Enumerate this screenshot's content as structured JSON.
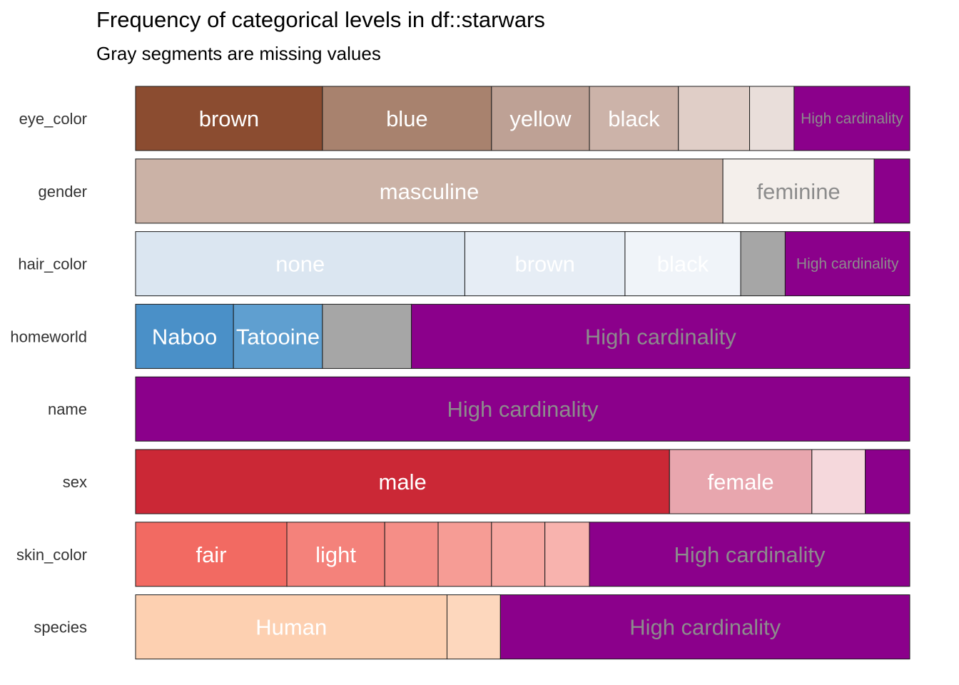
{
  "chart_data": {
    "type": "bar",
    "orientation": "horizontal-stacked-proportion",
    "title": "Frequency of categorical levels in df::starwars",
    "subtitle": "Gray segments are missing values",
    "xlabel": "",
    "ylabel": "",
    "total": 87,
    "colors": {
      "missing": "#A6A6A6",
      "high_cardinality": "#8B008B",
      "label_light": "#FFFFFF",
      "label_gray": "#8C8C8C"
    },
    "variables": [
      {
        "name": "eye_color",
        "segments": [
          {
            "label": "brown",
            "count": 21,
            "color": "#8B4C30",
            "text_color": "#FFFFFF"
          },
          {
            "label": "blue",
            "count": 19,
            "color": "#A8826E",
            "text_color": "#FFFFFF"
          },
          {
            "label": "yellow",
            "count": 11,
            "color": "#BEA195",
            "text_color": "#FFFFFF"
          },
          {
            "label": "black",
            "count": 10,
            "color": "#CCB3A9",
            "text_color": "#FFFFFF"
          },
          {
            "label": "",
            "count": 8,
            "color": "#E0CEC7",
            "text_color": "#FFFFFF"
          },
          {
            "label": "",
            "count": 5,
            "color": "#E9DEDA",
            "text_color": "#FFFFFF"
          },
          {
            "label": "High cardinality",
            "count": 13,
            "color": "#8B008B",
            "text_color": "#8C8C8C",
            "small": true
          }
        ]
      },
      {
        "name": "gender",
        "segments": [
          {
            "label": "masculine",
            "count": 66,
            "color": "#CBB2A6",
            "text_color": "#FFFFFF"
          },
          {
            "label": "feminine",
            "count": 17,
            "color": "#F4EFEB",
            "text_color": "#8C8C8C"
          },
          {
            "label": "",
            "count": 4,
            "color": "#8B008B",
            "text_color": "#8C8C8C"
          }
        ]
      },
      {
        "name": "hair_color",
        "segments": [
          {
            "label": "none",
            "count": 37,
            "color": "#DBE6F1",
            "text_color": "#FFFFFF"
          },
          {
            "label": "brown",
            "count": 18,
            "color": "#E6EDF5",
            "text_color": "#FFFFFF"
          },
          {
            "label": "black",
            "count": 13,
            "color": "#F0F4F9",
            "text_color": "#FFFFFF"
          },
          {
            "label": "",
            "count": 5,
            "color": "#A6A6A6",
            "text_color": "#FFFFFF"
          },
          {
            "label": "High cardinality",
            "count": 14,
            "color": "#8B008B",
            "text_color": "#8C8C8C",
            "small": true
          }
        ]
      },
      {
        "name": "homeworld",
        "segments": [
          {
            "label": "Naboo",
            "count": 11,
            "color": "#4A90C8",
            "text_color": "#FFFFFF"
          },
          {
            "label": "Tatooine",
            "count": 10,
            "color": "#5F9FD0",
            "text_color": "#FFFFFF"
          },
          {
            "label": "",
            "count": 10,
            "color": "#A6A6A6",
            "text_color": "#FFFFFF"
          },
          {
            "label": "High cardinality",
            "count": 56,
            "color": "#8B008B",
            "text_color": "#8C8C8C"
          }
        ]
      },
      {
        "name": "name",
        "segments": [
          {
            "label": "High cardinality",
            "count": 87,
            "color": "#8B008B",
            "text_color": "#8C8C8C"
          }
        ]
      },
      {
        "name": "sex",
        "segments": [
          {
            "label": "male",
            "count": 60,
            "color": "#CB2836",
            "text_color": "#FFFFFF"
          },
          {
            "label": "female",
            "count": 16,
            "color": "#E8A6AE",
            "text_color": "#FFFFFF"
          },
          {
            "label": "",
            "count": 6,
            "color": "#F5D8DC",
            "text_color": "#FFFFFF"
          },
          {
            "label": "",
            "count": 5,
            "color": "#8B008B",
            "text_color": "#8C8C8C"
          }
        ]
      },
      {
        "name": "skin_color",
        "segments": [
          {
            "label": "fair",
            "count": 17,
            "color": "#F26A62",
            "text_color": "#FFFFFF"
          },
          {
            "label": "light",
            "count": 11,
            "color": "#F4827B",
            "text_color": "#FFFFFF"
          },
          {
            "label": "",
            "count": 6,
            "color": "#F58E87",
            "text_color": "#FFFFFF"
          },
          {
            "label": "",
            "count": 6,
            "color": "#F69C95",
            "text_color": "#FFFFFF"
          },
          {
            "label": "",
            "count": 6,
            "color": "#F7A7A1",
            "text_color": "#FFFFFF"
          },
          {
            "label": "",
            "count": 5,
            "color": "#F8B3AE",
            "text_color": "#FFFFFF"
          },
          {
            "label": "High cardinality",
            "count": 36,
            "color": "#8B008B",
            "text_color": "#8C8C8C"
          }
        ]
      },
      {
        "name": "species",
        "segments": [
          {
            "label": "Human",
            "count": 35,
            "color": "#FDD0B1",
            "text_color": "#FFFFFF"
          },
          {
            "label": "",
            "count": 6,
            "color": "#FDD7BD",
            "text_color": "#FFFFFF"
          },
          {
            "label": "High cardinality",
            "count": 46,
            "color": "#8B008B",
            "text_color": "#8C8C8C"
          }
        ]
      }
    ]
  }
}
